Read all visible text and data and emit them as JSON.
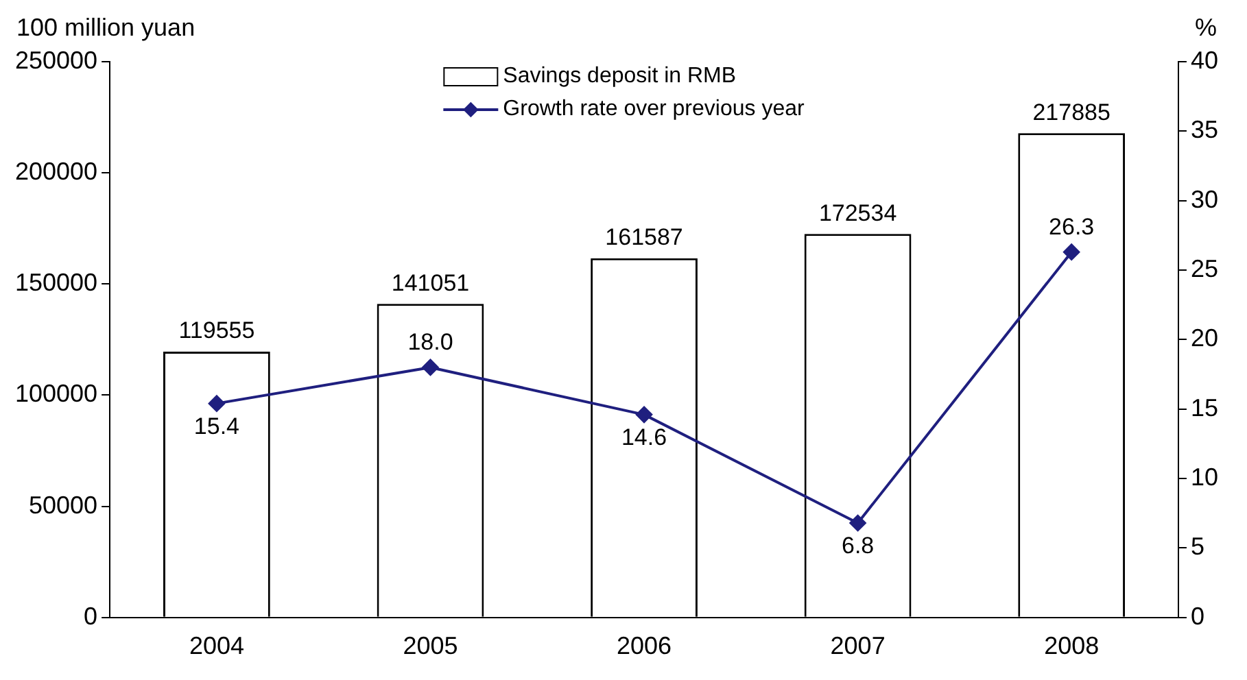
{
  "chart_data": {
    "type": "bar",
    "ylabel": "100 million yuan",
    "y2label": "%",
    "categories": [
      "2004",
      "2005",
      "2006",
      "2007",
      "2008"
    ],
    "series": [
      {
        "name": "Savings deposit in RMB",
        "color": "#ffffff",
        "values": [
          119555,
          141051,
          161587,
          172534,
          217885
        ],
        "value_labels": [
          "119555",
          "141051",
          "161587",
          "172534",
          "217885"
        ]
      },
      {
        "name": "Growth rate over previous year",
        "type": "line",
        "axis": "y2",
        "color": "#1f1f7f",
        "values": [
          15.4,
          18.0,
          14.6,
          6.8,
          26.3
        ],
        "value_labels": [
          "15.4",
          "18.0",
          "14.6",
          "6.8",
          "26.3"
        ]
      }
    ],
    "ylim": [
      0,
      250000
    ],
    "yticks": [
      0,
      50000,
      100000,
      150000,
      200000,
      250000
    ],
    "y2lim": [
      0,
      40
    ],
    "y2ticks": [
      0,
      5,
      10,
      15,
      20,
      25,
      30,
      35,
      40
    ],
    "legend": "top",
    "grid": false,
    "marker": "diamond",
    "line_style": "solid"
  }
}
